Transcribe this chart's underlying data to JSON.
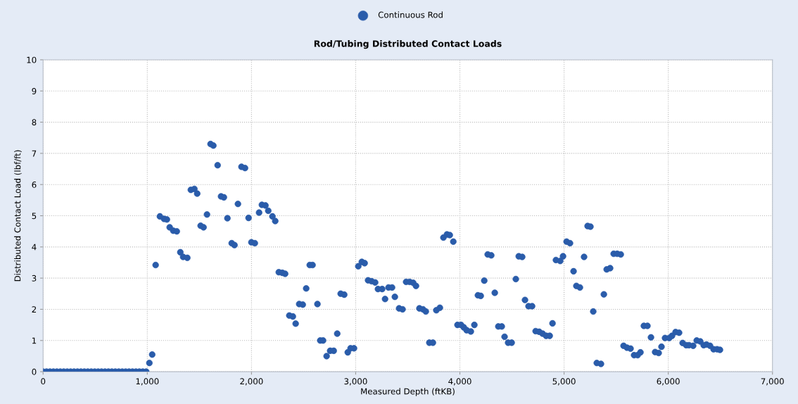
{
  "chart_data": {
    "type": "scatter",
    "title": "Rod/Tubing Distributed Contact Loads",
    "xlabel": "Measured Depth (ftKB)",
    "ylabel": "Distributed Contact Load (lbf/ft)",
    "xlim": [
      0,
      7000
    ],
    "ylim": [
      0,
      10
    ],
    "xticks": [
      0,
      {
        "value": 1000,
        "label": "1,000"
      },
      {
        "value": 2000,
        "label": "2,000"
      },
      {
        "value": 3000,
        "label": "3,000"
      },
      {
        "value": 4000,
        "label": "4,000"
      },
      {
        "value": 5000,
        "label": "5,000"
      },
      {
        "value": 6000,
        "label": "6,000"
      },
      {
        "value": 7000,
        "label": "7,000"
      }
    ],
    "yticks": [
      0,
      1,
      2,
      3,
      4,
      5,
      6,
      7,
      8,
      9,
      10
    ],
    "grid": true,
    "legend": "top",
    "marker": "circle",
    "series": [
      {
        "name": "Continuous Rod",
        "color": "#2a5caa",
        "x": [
          0,
          33,
          66,
          99,
          132,
          165,
          198,
          231,
          264,
          297,
          330,
          363,
          396,
          429,
          462,
          495,
          528,
          561,
          594,
          627,
          660,
          693,
          726,
          759,
          792,
          825,
          858,
          891,
          924,
          957,
          990,
          1020,
          1047,
          1080,
          1121,
          1161,
          1188,
          1215,
          1249,
          1283,
          1317,
          1344,
          1384,
          1418,
          1452,
          1479,
          1512,
          1540,
          1573,
          1607,
          1634,
          1675,
          1708,
          1735,
          1769,
          1810,
          1837,
          1870,
          1904,
          1938,
          1972,
          1999,
          2032,
          2073,
          2100,
          2134,
          2161,
          2201,
          2228,
          2262,
          2296,
          2323,
          2363,
          2397,
          2424,
          2458,
          2492,
          2525,
          2559,
          2586,
          2633,
          2660,
          2687,
          2721,
          2755,
          2789,
          2823,
          2856,
          2890,
          2924,
          2951,
          2984,
          3025,
          3059,
          3086,
          3119,
          3153,
          3187,
          3214,
          3254,
          3282,
          3315,
          3349,
          3376,
          3417,
          3450,
          3484,
          3518,
          3552,
          3579,
          3612,
          3646,
          3673,
          3707,
          3741,
          3774,
          3808,
          3842,
          3876,
          3903,
          3937,
          3977,
          4011,
          4038,
          4065,
          4105,
          4139,
          4173,
          4200,
          4234,
          4267,
          4301,
          4335,
          4369,
          4402,
          4429,
          4463,
          4497,
          4537,
          4565,
          4598,
          4625,
          4659,
          4693,
          4727,
          4761,
          4794,
          4828,
          4862,
          4889,
          4922,
          4963,
          4990,
          5024,
          5057,
          5091,
          5118,
          5152,
          5192,
          5226,
          5253,
          5280,
          5314,
          5354,
          5382,
          5409,
          5442,
          5476,
          5510,
          5544,
          5571,
          5604,
          5638,
          5672,
          5706,
          5733,
          5766,
          5800,
          5834,
          5874,
          5908,
          5935,
          5969,
          6009,
          6036,
          6070,
          6104,
          6138,
          6172,
          6199,
          6239,
          6273,
          6307,
          6340,
          6367,
          6401,
          6435,
          6468,
          6496
        ],
        "values": [
          0,
          0,
          0,
          0,
          0,
          0,
          0,
          0,
          0,
          0,
          0,
          0,
          0,
          0,
          0,
          0,
          0,
          0,
          0,
          0,
          0,
          0,
          0,
          0,
          0,
          0,
          0,
          0,
          0,
          0,
          0,
          0.28,
          0.55,
          3.42,
          4.98,
          4.9,
          4.88,
          4.63,
          4.52,
          4.5,
          3.83,
          3.68,
          3.65,
          5.83,
          5.86,
          5.71,
          4.68,
          4.63,
          5.04,
          7.3,
          7.25,
          6.62,
          5.62,
          5.59,
          4.92,
          4.12,
          4.06,
          5.38,
          6.57,
          6.53,
          4.93,
          4.15,
          4.12,
          5.1,
          5.35,
          5.33,
          5.16,
          4.98,
          4.83,
          3.19,
          3.17,
          3.14,
          1.8,
          1.77,
          1.54,
          2.17,
          2.15,
          2.67,
          3.42,
          3.42,
          2.17,
          1.0,
          1.0,
          0.5,
          0.67,
          0.67,
          1.22,
          2.5,
          2.47,
          0.62,
          0.75,
          0.75,
          3.38,
          3.52,
          3.48,
          2.93,
          2.9,
          2.86,
          2.65,
          2.65,
          2.33,
          2.7,
          2.7,
          2.4,
          2.03,
          2.0,
          2.88,
          2.88,
          2.85,
          2.75,
          2.03,
          2.0,
          1.93,
          0.93,
          0.93,
          1.97,
          2.05,
          4.3,
          4.4,
          4.38,
          4.17,
          1.5,
          1.5,
          1.42,
          1.33,
          1.29,
          1.5,
          2.45,
          2.43,
          2.92,
          3.76,
          3.73,
          2.53,
          1.45,
          1.45,
          1.12,
          0.93,
          0.93,
          2.97,
          3.7,
          3.68,
          2.3,
          2.1,
          2.1,
          1.3,
          1.28,
          1.22,
          1.15,
          1.15,
          1.55,
          3.58,
          3.55,
          3.7,
          4.17,
          4.12,
          3.22,
          2.75,
          2.7,
          3.68,
          4.67,
          4.65,
          1.93,
          0.28,
          0.25,
          2.48,
          3.28,
          3.32,
          3.78,
          3.78,
          3.76,
          0.83,
          0.77,
          0.74,
          0.53,
          0.53,
          0.62,
          1.47,
          1.47,
          1.1,
          0.63,
          0.6,
          0.8,
          1.08,
          1.08,
          1.15,
          1.27,
          1.25,
          0.92,
          0.85,
          0.85,
          0.83,
          1.0,
          0.97,
          0.85,
          0.87,
          0.83,
          0.72,
          0.72,
          0.7
        ]
      }
    ]
  }
}
